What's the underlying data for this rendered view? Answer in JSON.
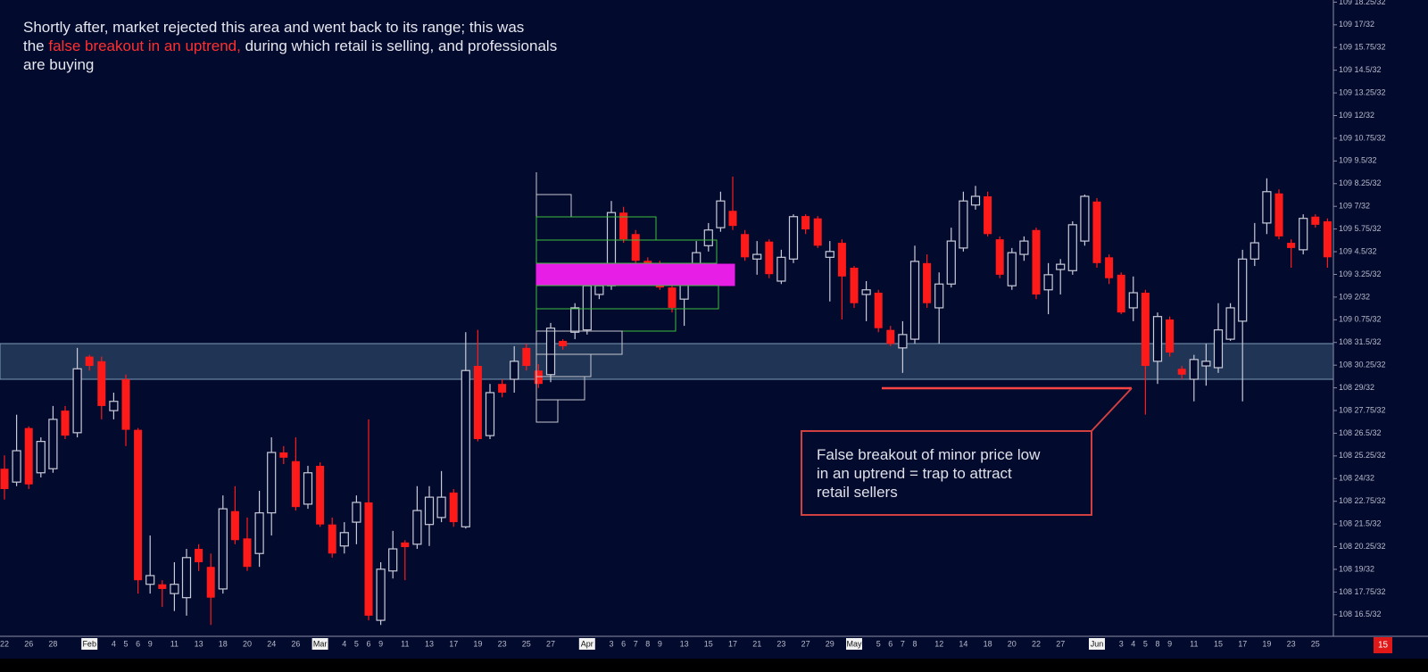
{
  "chart_data": {
    "type": "candlestick",
    "annotation": [
      [
        "Shortly after, market rejected this area and went back to its range; this was"
      ],
      [
        "the ",
        "false breakout in an uptrend,",
        " during which retail is selling, and professionals"
      ],
      [
        "are buying"
      ]
    ],
    "callout": [
      "False breakout of minor price low",
      "in an uptrend = trap to attract",
      "retail sellers"
    ],
    "corner_label": "15",
    "up_color": "#c9cbd8",
    "down_color": "#ff1a1a",
    "ylim": [
      108.48,
      109.574
    ],
    "yticks": [
      {
        "value": 109.5703125,
        "label": "109 18.25/32"
      },
      {
        "value": 109.53125,
        "label": "109 17/32"
      },
      {
        "value": 109.4921875,
        "label": "109 15.75/32"
      },
      {
        "value": 109.453125,
        "label": "109 14.5/32"
      },
      {
        "value": 109.4140625,
        "label": "109 13.25/32"
      },
      {
        "value": 109.375,
        "label": "109 12/32"
      },
      {
        "value": 109.3359375,
        "label": "109 10.75/32"
      },
      {
        "value": 109.296875,
        "label": "109 9.5/32"
      },
      {
        "value": 109.2578125,
        "label": "109 8.25/32"
      },
      {
        "value": 109.21875,
        "label": "109 7/32"
      },
      {
        "value": 109.1796875,
        "label": "109 5.75/32"
      },
      {
        "value": 109.140625,
        "label": "109 4.5/32"
      },
      {
        "value": 109.1015625,
        "label": "109 3.25/32"
      },
      {
        "value": 109.0625,
        "label": "109 2/32"
      },
      {
        "value": 109.0234375,
        "label": "109 0.75/32"
      },
      {
        "value": 108.984375,
        "label": "108 31.5/32"
      },
      {
        "value": 108.9453125,
        "label": "108 30.25/32"
      },
      {
        "value": 108.90625,
        "label": "108 29/32"
      },
      {
        "value": 108.8671875,
        "label": "108 27.75/32"
      },
      {
        "value": 108.828125,
        "label": "108 26.5/32"
      },
      {
        "value": 108.7890625,
        "label": "108 25.25/32"
      },
      {
        "value": 108.75,
        "label": "108 24/32"
      },
      {
        "value": 108.7109375,
        "label": "108 22.75/32"
      },
      {
        "value": 108.671875,
        "label": "108 21.5/32"
      },
      {
        "value": 108.6328125,
        "label": "108 20.25/32"
      },
      {
        "value": 108.59375,
        "label": "108 19/32"
      },
      {
        "value": 108.5546875,
        "label": "108 17.75/32"
      },
      {
        "value": 108.515625,
        "label": "108 16.5/32"
      }
    ],
    "categories": [
      "22",
      null,
      "26",
      null,
      "28",
      null,
      null,
      "Feb",
      null,
      "4",
      "5",
      "6",
      "9",
      null,
      "11",
      null,
      "13",
      null,
      "18",
      null,
      "20",
      null,
      "24",
      null,
      "26",
      null,
      "Mar",
      null,
      "4",
      "5",
      "6",
      "9",
      null,
      "11",
      null,
      "13",
      null,
      "17",
      null,
      "19",
      null,
      "23",
      null,
      "25",
      null,
      "27",
      null,
      null,
      "Apr",
      null,
      "3",
      "6",
      "7",
      "8",
      "9",
      null,
      "13",
      null,
      "15",
      null,
      "17",
      null,
      "21",
      null,
      "23",
      null,
      "27",
      null,
      "29",
      null,
      "May",
      null,
      "5",
      "6",
      "7",
      "8",
      null,
      "12",
      null,
      "14",
      null,
      "18",
      null,
      "20",
      null,
      "22",
      null,
      "27",
      null,
      null,
      "Jun",
      null,
      "3",
      "4",
      "5",
      "8",
      "9",
      null,
      "11",
      null,
      "15",
      null,
      "17",
      null,
      "19",
      null,
      "23",
      null,
      "25",
      null
    ],
    "open": [
      108.767,
      108.744,
      108.837,
      108.76,
      108.767,
      108.867,
      108.829,
      108.96,
      108.952,
      108.867,
      108.921,
      108.834,
      108.568,
      108.568,
      108.552,
      108.545,
      108.629,
      108.598,
      108.56,
      108.694,
      108.647,
      108.621,
      108.691,
      108.795,
      108.78,
      108.706,
      108.772,
      108.671,
      108.634,
      108.675,
      108.709,
      108.506,
      108.591,
      108.64,
      108.637,
      108.671,
      108.683,
      108.726,
      108.667,
      108.944,
      108.824,
      108.913,
      108.921,
      108.975,
      108.936,
      108.929,
      108.987,
      109.002,
      109.006,
      109.067,
      109.082,
      109.208,
      109.171,
      109.125,
      109.116,
      109.079,
      109.059,
      109.113,
      109.151,
      109.182,
      109.211,
      109.171,
      109.128,
      109.158,
      109.09,
      109.128,
      109.202,
      109.198,
      109.131,
      109.156,
      109.113,
      109.067,
      109.07,
      109.006,
      108.975,
      108.99,
      109.121,
      109.044,
      109.085,
      109.147,
      109.221,
      109.236,
      109.162,
      109.082,
      109.136,
      109.178,
      109.075,
      109.11,
      109.108,
      109.159,
      109.227,
      109.131,
      109.101,
      109.044,
      109.07,
      108.952,
      109.024,
      108.939,
      108.921,
      108.944,
      108.941,
      108.99,
      109.021,
      109.128,
      109.19,
      109.241,
      109.156,
      109.144,
      109.201,
      109.193
    ],
    "high": [
      108.79,
      108.86,
      108.84,
      108.821,
      108.875,
      108.875,
      108.975,
      108.963,
      108.96,
      108.898,
      108.929,
      108.837,
      108.652,
      108.575,
      108.606,
      108.629,
      108.637,
      108.621,
      108.721,
      108.737,
      108.683,
      108.729,
      108.821,
      108.806,
      108.821,
      108.772,
      108.778,
      108.683,
      108.675,
      108.721,
      108.852,
      108.606,
      108.66,
      108.644,
      108.737,
      108.737,
      108.763,
      108.732,
      109.002,
      109.006,
      108.913,
      108.921,
      108.978,
      108.982,
      108.947,
      109.018,
      108.99,
      109.052,
      109.113,
      109.098,
      109.228,
      109.218,
      109.178,
      109.131,
      109.125,
      109.085,
      109.113,
      109.159,
      109.19,
      109.244,
      109.27,
      109.178,
      109.159,
      109.162,
      109.144,
      109.205,
      109.205,
      109.202,
      109.159,
      109.162,
      109.116,
      109.09,
      109.075,
      109.013,
      109.021,
      109.151,
      109.136,
      109.105,
      109.182,
      109.244,
      109.254,
      109.244,
      109.167,
      109.147,
      109.167,
      109.182,
      109.121,
      109.128,
      109.193,
      109.239,
      109.233,
      109.136,
      109.105,
      109.098,
      109.075,
      109.036,
      109.029,
      108.944,
      108.963,
      108.982,
      109.052,
      109.052,
      109.144,
      109.19,
      109.267,
      109.248,
      109.162,
      109.205,
      109.205,
      109.198
    ],
    "low": [
      108.714,
      108.737,
      108.732,
      108.752,
      108.76,
      108.818,
      108.821,
      108.936,
      108.852,
      108.852,
      108.806,
      108.552,
      108.552,
      108.529,
      108.522,
      108.514,
      108.591,
      108.498,
      108.552,
      108.637,
      108.591,
      108.598,
      108.652,
      108.775,
      108.695,
      108.698,
      108.667,
      108.614,
      108.621,
      108.637,
      108.506,
      108.498,
      108.578,
      108.575,
      108.629,
      108.634,
      108.675,
      108.667,
      108.664,
      108.814,
      108.818,
      108.89,
      108.898,
      108.936,
      108.906,
      108.916,
      108.972,
      108.99,
      108.998,
      109.059,
      109.075,
      109.156,
      109.113,
      109.105,
      109.075,
      109.036,
      109.013,
      109.082,
      109.141,
      109.175,
      109.178,
      109.125,
      109.101,
      109.095,
      109.085,
      109.121,
      109.171,
      109.147,
      109.055,
      109.024,
      109.044,
      109.021,
      109.002,
      108.978,
      108.932,
      108.982,
      109.044,
      108.982,
      109.079,
      109.141,
      109.213,
      109.167,
      109.095,
      109.075,
      109.125,
      109.059,
      109.033,
      109.067,
      109.101,
      109.151,
      109.113,
      109.085,
      109.033,
      109.021,
      108.86,
      108.913,
      108.96,
      108.921,
      108.883,
      108.91,
      108.932,
      108.987,
      108.883,
      109.116,
      109.171,
      109.162,
      109.113,
      109.136,
      109.182,
      109.113
    ],
    "close": [
      108.732,
      108.798,
      108.74,
      108.814,
      108.852,
      108.824,
      108.939,
      108.944,
      108.875,
      108.883,
      108.834,
      108.575,
      108.583,
      108.56,
      108.568,
      108.614,
      108.606,
      108.545,
      108.698,
      108.644,
      108.598,
      108.691,
      108.795,
      108.786,
      108.701,
      108.76,
      108.671,
      108.621,
      108.657,
      108.709,
      108.514,
      108.594,
      108.629,
      108.632,
      108.695,
      108.718,
      108.718,
      108.675,
      108.936,
      108.818,
      108.898,
      108.898,
      108.952,
      108.944,
      108.913,
      109.009,
      108.978,
      109.044,
      109.082,
      109.082,
      109.208,
      109.162,
      109.125,
      109.113,
      109.079,
      109.044,
      109.09,
      109.139,
      109.178,
      109.228,
      109.185,
      109.131,
      109.136,
      109.102,
      109.131,
      109.201,
      109.179,
      109.151,
      109.141,
      109.098,
      109.052,
      109.075,
      109.009,
      108.982,
      108.998,
      109.124,
      109.052,
      109.085,
      109.159,
      109.228,
      109.236,
      109.171,
      109.101,
      109.139,
      109.159,
      109.067,
      109.101,
      109.119,
      109.187,
      109.236,
      109.121,
      109.095,
      109.036,
      109.07,
      108.944,
      109.029,
      108.967,
      108.929,
      108.955,
      108.952,
      109.006,
      109.044,
      109.128,
      109.156,
      109.244,
      109.167,
      109.147,
      109.198,
      109.187,
      109.131
    ]
  }
}
